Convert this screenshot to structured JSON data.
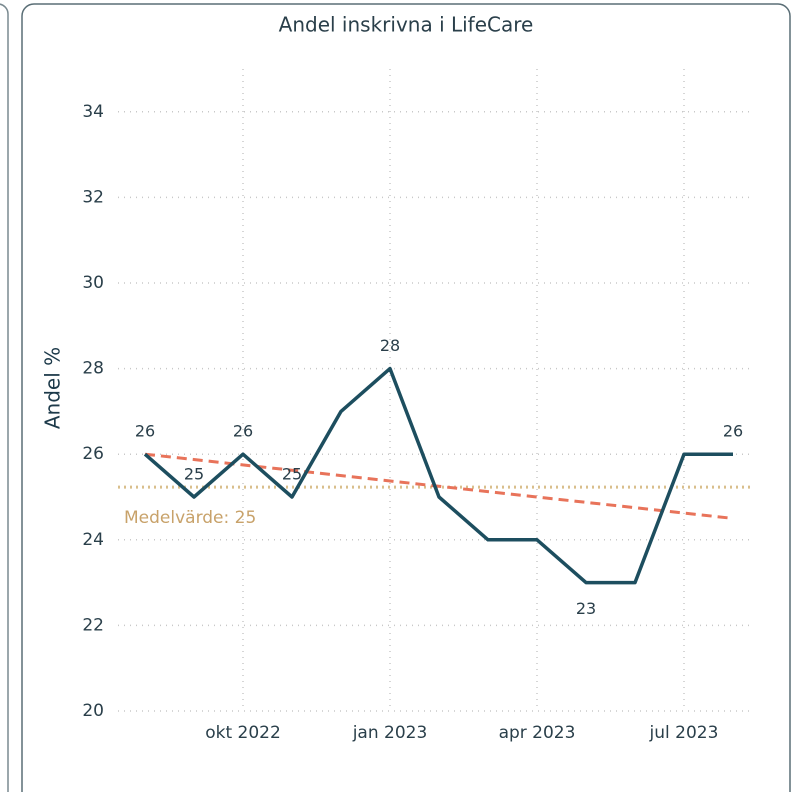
{
  "chart_data": {
    "type": "line",
    "title": "Andel inskrivna i LifeCare",
    "y_label": "Andel %",
    "x": [
      "2022-08",
      "2022-09",
      "2022-10",
      "2022-11",
      "2022-12",
      "2023-01",
      "2023-02",
      "2023-03",
      "2023-04",
      "2023-05",
      "2023-06",
      "2023-07",
      "2023-08"
    ],
    "series": [
      {
        "name": "Andel %",
        "color": "#1d4e5f",
        "values": [
          26,
          25,
          26,
          25,
          27,
          28,
          25,
          24,
          24,
          23,
          23,
          26,
          26
        ],
        "value_labels": [
          "26",
          "25",
          "26",
          "25",
          null,
          "28",
          null,
          null,
          null,
          "23",
          null,
          null,
          "26"
        ]
      }
    ],
    "ylim": [
      20,
      35
    ],
    "yticks": [
      20,
      22,
      24,
      26,
      28,
      30,
      32,
      34
    ],
    "xticks": [
      {
        "value": "2022-10",
        "label": "okt 2022"
      },
      {
        "value": "2023-01",
        "label": "jan 2023"
      },
      {
        "value": "2023-04",
        "label": "apr 2023"
      },
      {
        "value": "2023-07",
        "label": "jul 2023"
      }
    ],
    "grid": true,
    "reference_line": {
      "value": 25.23,
      "label": "Medelvärde: 25",
      "color": "#d9bf8c"
    },
    "trend_line": {
      "start": 26.0,
      "end": 24.5,
      "color": "#e8735a"
    }
  }
}
